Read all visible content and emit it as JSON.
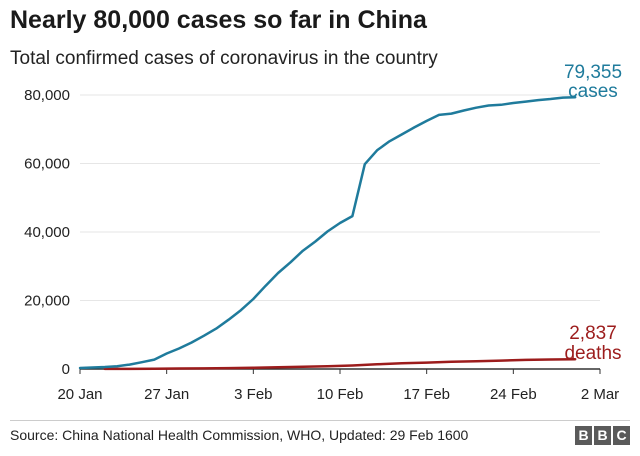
{
  "title": "Nearly 80,000 cases so far in China",
  "subtitle": "Total confirmed cases of coronavirus in the country",
  "source": "Source: China National Health Commission, WHO, Updated: 29 Feb 1600",
  "logo": [
    "B",
    "B",
    "C"
  ],
  "colors": {
    "cases": "#1f7b9c",
    "deaths": "#9c1c1c",
    "grid": "#e6e6e6",
    "axis": "#333333"
  },
  "chart_data": {
    "type": "line",
    "xlim": [
      "2020-01-20",
      "2020-03-02"
    ],
    "ylim": [
      0,
      80000
    ],
    "x_ticks": [
      "20 Jan",
      "27 Jan",
      "3 Feb",
      "10 Feb",
      "17 Feb",
      "24 Feb",
      "2 Mar"
    ],
    "y_ticks": [
      "0",
      "20,000",
      "40,000",
      "60,000",
      "80,000"
    ],
    "grid": true,
    "series": [
      {
        "name": "cases",
        "label_value": "79,355",
        "label_name": "cases",
        "color": "#1f7b9c",
        "x": [
          "2020-01-20",
          "2020-01-21",
          "2020-01-22",
          "2020-01-23",
          "2020-01-24",
          "2020-01-25",
          "2020-01-26",
          "2020-01-27",
          "2020-01-28",
          "2020-01-29",
          "2020-01-30",
          "2020-01-31",
          "2020-02-01",
          "2020-02-02",
          "2020-02-03",
          "2020-02-04",
          "2020-02-05",
          "2020-02-06",
          "2020-02-07",
          "2020-02-08",
          "2020-02-09",
          "2020-02-10",
          "2020-02-11",
          "2020-02-12",
          "2020-02-13",
          "2020-02-14",
          "2020-02-15",
          "2020-02-16",
          "2020-02-17",
          "2020-02-18",
          "2020-02-19",
          "2020-02-20",
          "2020-02-21",
          "2020-02-22",
          "2020-02-23",
          "2020-02-24",
          "2020-02-25",
          "2020-02-26",
          "2020-02-27",
          "2020-02-28",
          "2020-02-29"
        ],
        "values": [
          291,
          440,
          571,
          830,
          1287,
          1975,
          2744,
          4515,
          5974,
          7711,
          9692,
          11791,
          14380,
          17205,
          20438,
          24324,
          28018,
          31161,
          34546,
          37198,
          40171,
          42638,
          44653,
          59804,
          63851,
          66492,
          68500,
          70548,
          72436,
          74185,
          74576,
          75465,
          76288,
          76936,
          77150,
          77658,
          78064,
          78497,
          78824,
          79251,
          79355
        ]
      },
      {
        "name": "deaths",
        "label_value": "2,837",
        "label_name": "deaths",
        "color": "#9c1c1c",
        "x": [
          "2020-01-22",
          "2020-01-24",
          "2020-01-26",
          "2020-01-28",
          "2020-01-30",
          "2020-02-01",
          "2020-02-03",
          "2020-02-05",
          "2020-02-07",
          "2020-02-09",
          "2020-02-11",
          "2020-02-13",
          "2020-02-15",
          "2020-02-17",
          "2020-02-19",
          "2020-02-21",
          "2020-02-23",
          "2020-02-25",
          "2020-02-27",
          "2020-02-29"
        ],
        "values": [
          17,
          41,
          80,
          132,
          170,
          259,
          361,
          490,
          636,
          811,
          1016,
          1367,
          1665,
          1868,
          2118,
          2236,
          2442,
          2663,
          2788,
          2837
        ]
      }
    ]
  }
}
